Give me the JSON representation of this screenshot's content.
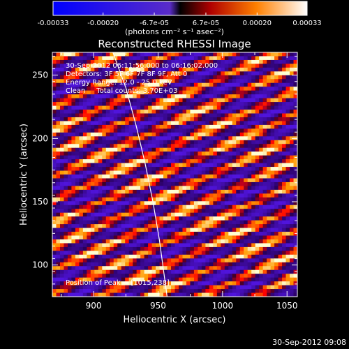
{
  "colorbar": {
    "tick_labels": [
      "-0.00033",
      "-0.00020",
      "-6.7e-05",
      "6.7e-05",
      "0.00020",
      "0.00033"
    ],
    "tick_values": [
      -0.00033,
      -0.0002,
      -6.7e-05,
      6.7e-05,
      0.0002,
      0.00033
    ],
    "range": [
      -0.00033,
      0.00033
    ],
    "unit_label": "(photons cm⁻² s⁻¹ asec⁻²)"
  },
  "chart_data": {
    "type": "heatmap",
    "title": "Reconstructed RHESSI Image",
    "xlabel": "Heliocentric X (arcsec)",
    "ylabel": "Heliocentric Y (arcsec)",
    "xlim": [
      868,
      1058
    ],
    "ylim": [
      75,
      268
    ],
    "xticks": [
      900,
      950,
      1000,
      1050
    ],
    "yticks": [
      100,
      150,
      200,
      250
    ],
    "annotations": [
      "30-Sep-2012 06:11:56.000 to 06:16:02.000",
      "Detectors: 3F 5F 6F 7F 8F 9F, Att 0",
      "Energy Range: 12.0 - 25.0 keV",
      "Clean     Total counts: 3.70E+03"
    ],
    "peak_label": "Position of Peak = [1015,238]",
    "peak": [
      1015,
      238
    ],
    "limb_curve": [
      [
        915,
        268
      ],
      [
        925,
        240
      ],
      [
        933,
        210
      ],
      [
        940,
        180
      ],
      [
        946,
        150
      ],
      [
        951,
        120
      ],
      [
        955,
        90
      ],
      [
        957,
        75
      ]
    ]
  },
  "footer": {
    "timestamp": "30-Sep-2012 09:08"
  }
}
